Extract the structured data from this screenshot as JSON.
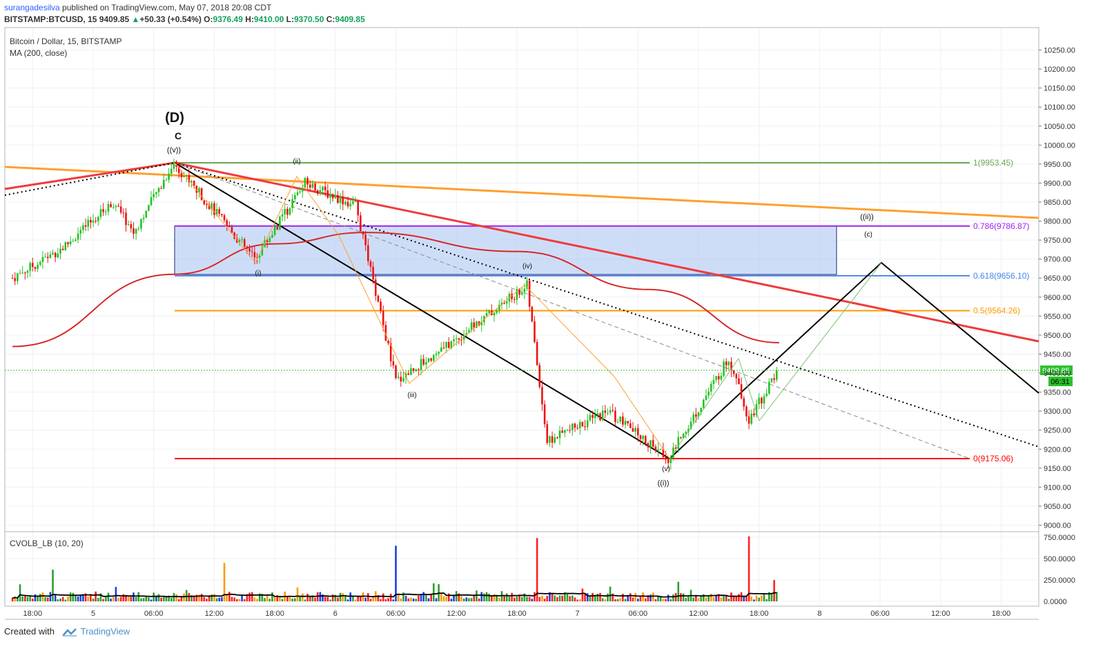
{
  "header": {
    "author": "surangadesilva",
    "published_text": " published on TradingView.com, May 07, 2018 20:08 CDT",
    "symbol": "BITSTAMP:BTCUSD, 15",
    "last": "9409.85",
    "change": "+50.33 (+0.54%)",
    "o_label": "O:",
    "o_value": "9376.49",
    "h_label": "H:",
    "h_value": "9410.00",
    "l_label": "L:",
    "l_value": "9370.50",
    "c_label": "C:",
    "c_value": "9409.85"
  },
  "legend": {
    "title": "Bitcoin / Dollar, 15, BITSTAMP",
    "ma": "MA (200, close)",
    "indicator": "CVOLB_LB (10, 20)"
  },
  "price_axis": {
    "ticks": [
      "10250.00",
      "10200.00",
      "10150.00",
      "10100.00",
      "10050.00",
      "10000.00",
      "9950.00",
      "9900.00",
      "9850.00",
      "9800.00",
      "9750.00",
      "9700.00",
      "9650.00",
      "9600.00",
      "9550.00",
      "9500.00",
      "9450.00",
      "9400.00",
      "9350.00",
      "9300.00",
      "9250.00",
      "9200.00",
      "9150.00",
      "9100.00",
      "9050.00",
      "9000.00"
    ],
    "current_price": "9409.85",
    "countdown": "06:31"
  },
  "volume_axis": {
    "ticks": [
      "750.0000",
      "500.0000",
      "250.0000",
      "0.0000"
    ]
  },
  "time_axis": {
    "ticks": [
      "18:00",
      "5",
      "06:00",
      "12:00",
      "18:00",
      "6",
      "06:00",
      "12:00",
      "18:00",
      "7",
      "06:00",
      "12:00",
      "18:00",
      "8",
      "06:00",
      "12:00",
      "18:00"
    ]
  },
  "fibonacci": [
    {
      "label": "1(9953.45)",
      "price": 9953.45,
      "color": "#6aa84f"
    },
    {
      "label": "0.786(9786.87)",
      "price": 9786.87,
      "color": "#a020f0"
    },
    {
      "label": "0.618(9656.10)",
      "price": 9656.1,
      "color": "#4a86e8"
    },
    {
      "label": "0.5(9564.26)",
      "price": 9564.26,
      "color": "#ff9900"
    },
    {
      "label": "0(9175.06)",
      "price": 9175.06,
      "color": "#ff0000"
    }
  ],
  "wave_labels": {
    "D": "(D)",
    "C": "C",
    "v_outer": "((v))",
    "ii": "(ii)",
    "i": "(i)",
    "iii": "(iii)",
    "iv": "(iv)",
    "v": "(v)",
    "i_outer": "((i))",
    "ii_outer": "((ii))",
    "c_small": "(c)"
  },
  "chart_data": {
    "type": "candlestick",
    "title": "Bitcoin / Dollar, 15, BITSTAMP",
    "symbol": "BITSTAMP:BTCUSD",
    "interval": "15",
    "ohlc_last": {
      "open": 9376.49,
      "high": 9410.0,
      "low": 9370.5,
      "close": 9409.85,
      "change": 50.33,
      "change_pct": 0.54
    },
    "y_range": [
      8990,
      10290
    ],
    "price_path": [
      {
        "t": "May 4 16:00",
        "price": 9650
      },
      {
        "t": "May 4 21:00",
        "price": 9730
      },
      {
        "t": "May 5 02:00",
        "price": 9850
      },
      {
        "t": "May 5 04:00",
        "price": 9770
      },
      {
        "t": "May 5 08:00",
        "price": 9953
      },
      {
        "t": "May 5 16:00",
        "price": 9700
      },
      {
        "t": "May 5 21:00",
        "price": 9900
      },
      {
        "t": "May 6 02:00",
        "price": 9840
      },
      {
        "t": "May 6 06:00",
        "price": 9380
      },
      {
        "t": "May 6 11:00",
        "price": 9470
      },
      {
        "t": "May 6 19:00",
        "price": 9630
      },
      {
        "t": "May 6 21:00",
        "price": 9220
      },
      {
        "t": "May 7 03:00",
        "price": 9300
      },
      {
        "t": "May 7 09:00",
        "price": 9175
      },
      {
        "t": "May 7 15:00",
        "price": 9440
      },
      {
        "t": "May 7 17:00",
        "price": 9280
      },
      {
        "t": "May 7 20:00",
        "price": 9410
      }
    ],
    "moving_average_200": [
      {
        "t": "May 4 16:00",
        "price": 9470
      },
      {
        "t": "May 5 08:00",
        "price": 9660
      },
      {
        "t": "May 5 18:00",
        "price": 9740
      },
      {
        "t": "May 6 03:00",
        "price": 9770
      },
      {
        "t": "May 6 18:00",
        "price": 9720
      },
      {
        "t": "May 7 07:00",
        "price": 9620
      },
      {
        "t": "May 7 20:00",
        "price": 9480
      }
    ],
    "volume_ylim": [
      0,
      780
    ],
    "volume_spikes": [
      {
        "t": "May 4 20:00",
        "value": 370
      },
      {
        "t": "May 5 13:00",
        "value": 450
      },
      {
        "t": "May 6 06:00",
        "value": 650
      },
      {
        "t": "May 6 20:00",
        "value": 740
      },
      {
        "t": "May 7 17:00",
        "value": 760
      }
    ]
  }
}
